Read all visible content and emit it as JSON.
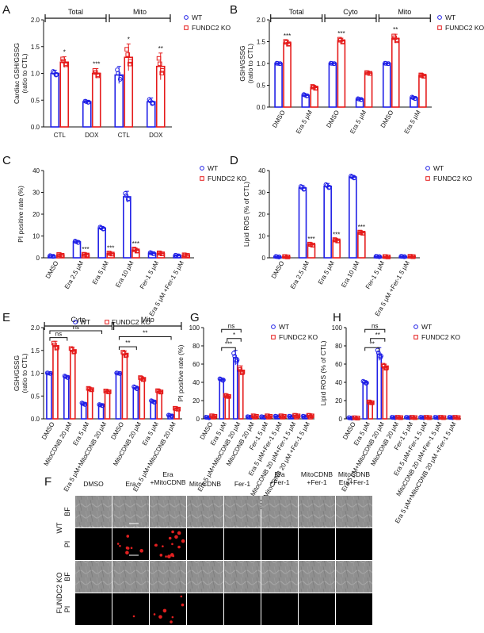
{
  "colors": {
    "wt": "#1f1fe6",
    "ko": "#e51b1b",
    "axis": "#111111",
    "img_bg": "#000000",
    "bf_bg": "#8d8d8d",
    "pi_dot": "#e02020"
  },
  "chart_data": [
    {
      "panel": "A",
      "type": "bar",
      "ylabel": "Cardiac GSH/GSSG (ratio to CTL)",
      "ylabel_lines": [
        "Cardiac GSH/GSSG",
        "(ratio to CTL)"
      ],
      "ylim": [
        0,
        2.0
      ],
      "yticks": [
        "0.0",
        "0.5",
        "1.0",
        "1.5",
        "2.0"
      ],
      "categories": [
        "CTL",
        "DOX",
        "CTL",
        "DOX"
      ],
      "groups": [
        {
          "label": "Total",
          "from": 0,
          "to": 1
        },
        {
          "label": "Mito",
          "from": 2,
          "to": 3
        }
      ],
      "series": [
        {
          "name": "WT",
          "values": [
            1.0,
            0.47,
            0.97,
            0.47
          ],
          "errors": [
            0.06,
            0.02,
            0.16,
            0.07
          ]
        },
        {
          "name": "FUNDC2 KO",
          "values": [
            1.21,
            1.0,
            1.3,
            1.13
          ],
          "errors": [
            0.1,
            0.09,
            0.25,
            0.25
          ]
        }
      ],
      "significance": [
        [
          "",
          "*"
        ],
        [
          "",
          "***"
        ],
        [
          "",
          "*"
        ],
        [
          "",
          "**"
        ]
      ],
      "legend": [
        "WT",
        "FUNDC2 KO"
      ]
    },
    {
      "panel": "B",
      "type": "bar",
      "ylabel": "GSH/GSSG (ratio to CTL)",
      "ylabel_lines": [
        "GSH/GSSG",
        "(ratio to CTL)"
      ],
      "ylim": [
        0,
        2.0
      ],
      "yticks": [
        "0.0",
        "0.5",
        "1.0",
        "1.5",
        "2.0"
      ],
      "categories": [
        "DMSO",
        "Era 5 μM",
        "DMSO",
        "Era 5 μM",
        "DMSO",
        "Era 5 μM"
      ],
      "groups": [
        {
          "label": "Total",
          "from": 0,
          "to": 1
        },
        {
          "label": "Cyto",
          "from": 2,
          "to": 3
        },
        {
          "label": "Mito",
          "from": 4,
          "to": 5
        }
      ],
      "series": [
        {
          "name": "WT",
          "values": [
            1.0,
            0.27,
            1.0,
            0.18,
            1.0,
            0.21
          ],
          "errors": [
            0.01,
            0.03,
            0.01,
            0.02,
            0.01,
            0.03
          ]
        },
        {
          "name": "FUNDC2 KO",
          "values": [
            1.47,
            0.45,
            1.52,
            0.78,
            1.57,
            0.72
          ],
          "errors": [
            0.06,
            0.04,
            0.06,
            0.02,
            0.1,
            0.03
          ]
        }
      ],
      "significance": [
        [
          "",
          "***"
        ],
        [
          "",
          ""
        ],
        [
          "",
          "***"
        ],
        [
          "",
          ""
        ],
        [
          "",
          "**"
        ],
        [
          "",
          ""
        ]
      ],
      "legend": [
        "WT",
        "FUNDC2 KO"
      ]
    },
    {
      "panel": "C",
      "type": "bar",
      "ylabel": "PI positive rate (%)",
      "ylabel_lines": [
        "PI positive rate (%)"
      ],
      "ylim": [
        0,
        40
      ],
      "yticks": [
        "0",
        "10",
        "20",
        "30",
        "40"
      ],
      "categories": [
        "DMSO",
        "Era 2.5 μM",
        "Era 5 μM",
        "Era 10 μM",
        "Fer-1 5 μM",
        "Era 5 μM +Fer-1 5 μM"
      ],
      "series": [
        {
          "name": "WT",
          "values": [
            0.8,
            7.3,
            13.6,
            28.0,
            2.1,
            1.0
          ],
          "errors": [
            0.3,
            0.6,
            0.8,
            2.5,
            0.5,
            0.3
          ]
        },
        {
          "name": "FUNDC2 KO",
          "values": [
            1.3,
            1.4,
            1.9,
            3.5,
            2.0,
            1.2
          ],
          "errors": [
            0.4,
            0.4,
            0.5,
            0.9,
            0.5,
            0.3
          ]
        }
      ],
      "significance": [
        [
          "",
          ""
        ],
        [
          "",
          "***"
        ],
        [
          "",
          "***"
        ],
        [
          "",
          "***"
        ],
        [
          "",
          ""
        ],
        [
          "",
          ""
        ]
      ],
      "legend": [
        "WT",
        "FUNDC2 KO"
      ]
    },
    {
      "panel": "D",
      "type": "bar",
      "ylabel": "Lipid ROS (% of CTL)",
      "ylabel_lines": [
        "Lipid ROS (% of CTL)"
      ],
      "ylim": [
        0,
        40
      ],
      "yticks": [
        "0",
        "10",
        "20",
        "30",
        "40"
      ],
      "categories": [
        "DMSO",
        "Era 2.5 μM",
        "Era 5 μM",
        "Era 10 μM",
        "Fer-1 5 μM",
        "Era 5 μM +Fer-1 5 μM"
      ],
      "series": [
        {
          "name": "WT",
          "values": [
            0.5,
            32.0,
            32.8,
            37.0,
            0.6,
            0.6
          ],
          "errors": [
            0.2,
            1.2,
            1.3,
            0.8,
            0.2,
            0.2
          ]
        },
        {
          "name": "FUNDC2 KO",
          "values": [
            0.5,
            6.0,
            8.0,
            11.5,
            0.5,
            0.6
          ],
          "errors": [
            0.2,
            0.5,
            0.6,
            0.5,
            0.2,
            0.2
          ]
        }
      ],
      "significance": [
        [
          "",
          ""
        ],
        [
          "",
          "***"
        ],
        [
          "",
          "***"
        ],
        [
          "",
          "***"
        ],
        [
          "",
          ""
        ],
        [
          "",
          ""
        ]
      ],
      "legend": [
        "WT",
        "FUNDC2 KO"
      ]
    },
    {
      "panel": "E",
      "type": "bar",
      "ylabel": "GSH/GSSG (ratio to CTL)",
      "ylabel_lines": [
        "GSH/GSSG",
        "(ratio to CTL)"
      ],
      "ylim": [
        0,
        2.0
      ],
      "yticks": [
        "0.0",
        "0.5",
        "1.0",
        "1.5",
        "2.0"
      ],
      "categories": [
        "DMSO",
        "MitoCDNB 20 μM",
        "Era 5 μM",
        "Era 5 μM+MitoCDNB 20 μM",
        "DMSO",
        "MitoCDNB 20 μM",
        "Era 5 μM",
        "Era 5 μM+MitoCDNB 20 μM"
      ],
      "groups": [
        {
          "label": "Cyto",
          "from": 0,
          "to": 3
        },
        {
          "label": "Mito",
          "from": 4,
          "to": 7
        }
      ],
      "series": [
        {
          "name": "WT",
          "values": [
            1.0,
            0.92,
            0.33,
            0.3,
            1.0,
            0.68,
            0.38,
            0.07
          ],
          "errors": [
            0.01,
            0.03,
            0.03,
            0.02,
            0.01,
            0.04,
            0.03,
            0.02
          ]
        },
        {
          "name": "FUNDC2 KO",
          "values": [
            1.6,
            1.5,
            0.65,
            0.6,
            1.42,
            0.88,
            0.6,
            0.22
          ],
          "errors": [
            0.1,
            0.07,
            0.03,
            0.02,
            0.07,
            0.04,
            0.03,
            0.02
          ]
        }
      ],
      "brackets": [
        {
          "from": 0,
          "to": 1,
          "label": "ns",
          "y": 1.78
        },
        {
          "from": 0,
          "to": 3,
          "label": "ns",
          "y": 1.93
        },
        {
          "from": 4,
          "to": 5,
          "label": "**",
          "y": 1.58
        },
        {
          "from": 4,
          "to": 7,
          "label": "**",
          "y": 1.8
        }
      ],
      "legend": [
        "WT",
        "FUNDC2 KO"
      ]
    },
    {
      "panel": "G",
      "type": "bar",
      "ylabel": "PI positive rate (%)",
      "ylabel_lines": [
        "PI positive rate (%)"
      ],
      "ylim": [
        0,
        100
      ],
      "yticks": [
        "0",
        "20",
        "40",
        "60",
        "80",
        "100"
      ],
      "categories": [
        "DMSO",
        "Era 5 μM",
        "Era 5 μM+MitoCDNB 20 μM",
        "MitoCDNB 20 μM",
        "Fer-1 5 μM",
        "Era 5 μM+Fer-1 5 μM",
        "MitoCDNB 20 μM+Fer-1 5 μM",
        "Era 5 μM+MitoCDNB 20 μM +Fer-1 5 μM"
      ],
      "series": [
        {
          "name": "WT",
          "values": [
            1.5,
            43.0,
            67.0,
            2.0,
            2.0,
            2.5,
            2.5,
            2.5
          ],
          "errors": [
            0.5,
            1.5,
            8.0,
            0.6,
            0.6,
            0.6,
            0.6,
            0.6
          ]
        },
        {
          "name": "FUNDC2 KO",
          "values": [
            3.0,
            25.0,
            53.0,
            3.0,
            3.0,
            3.0,
            3.5,
            3.5
          ],
          "errors": [
            0.6,
            1.2,
            5.0,
            0.6,
            0.6,
            0.6,
            0.7,
            0.7
          ]
        }
      ],
      "brackets": [
        {
          "from": 1,
          "to": 2,
          "label": "***",
          "y": 78,
          "s1": 0,
          "s2": 0
        },
        {
          "from": 1,
          "to": 2,
          "label": "*",
          "y": 88,
          "s1": 1,
          "s2": 1
        },
        {
          "from": 1,
          "to": 2,
          "label": "ns",
          "y": 98,
          "s1": 0,
          "s2": 1
        }
      ],
      "legend": [
        "WT",
        "FUNDC2 KO"
      ]
    },
    {
      "panel": "H",
      "type": "bar",
      "ylabel": "Lipid ROS (% of CTL)",
      "ylabel_lines": [
        "Lipid ROS (% of CTL)"
      ],
      "ylim": [
        0,
        100
      ],
      "yticks": [
        "0",
        "20",
        "40",
        "60",
        "80",
        "100"
      ],
      "categories": [
        "DMSO",
        "Era 5 μM",
        "Era 5 μM+MitoCDNB 20 μM",
        "MitoCDNB 20 μM",
        "Fer-1 5 μM",
        "Era 5 μM+Fer-1 5 μM",
        "MitoCDNB 20 μM+Fer-1 5 μM",
        "Era 5 μM+MitoCDNB 20 μM +Fer-1 5 μM"
      ],
      "series": [
        {
          "name": "WT",
          "values": [
            1.0,
            40.0,
            71.0,
            1.5,
            1.5,
            1.5,
            1.5,
            1.5
          ],
          "errors": [
            0.4,
            2.0,
            7.0,
            0.4,
            0.4,
            0.4,
            0.4,
            0.4
          ]
        },
        {
          "name": "FUNDC2 KO",
          "values": [
            1.0,
            18.0,
            57.0,
            1.5,
            1.5,
            1.5,
            1.5,
            1.5
          ],
          "errors": [
            0.4,
            1.0,
            3.0,
            0.4,
            0.4,
            0.4,
            0.4,
            0.4
          ]
        }
      ],
      "brackets": [
        {
          "from": 1,
          "to": 2,
          "label": "**",
          "y": 78,
          "s1": 0,
          "s2": 0
        },
        {
          "from": 1,
          "to": 2,
          "label": "**",
          "y": 88,
          "s1": 1,
          "s2": 1
        },
        {
          "from": 1,
          "to": 2,
          "label": "ns",
          "y": 98,
          "s1": 0,
          "s2": 1
        }
      ],
      "legend": [
        "WT",
        "FUNDC2 KO"
      ]
    }
  ],
  "panel_f": {
    "letter": "F",
    "columns": [
      "DMSO",
      "Era",
      "Era\n+MitoCDNB",
      "MitoCDNB",
      "Fer-1",
      "Era\n+Fer-1",
      "MitoCDNB\n+Fer-1",
      "MitoCDNB\nEra+Fer-1"
    ],
    "groups": [
      "WT",
      "FUNDC2 KO"
    ],
    "rows": [
      "BF",
      "PI"
    ],
    "pi_signal": {
      "WT": [
        0,
        0.35,
        0.7,
        0,
        0,
        0,
        0,
        0
      ],
      "FUNDC2 KO": [
        0,
        0.05,
        0.3,
        0,
        0,
        0,
        0,
        0
      ]
    }
  }
}
